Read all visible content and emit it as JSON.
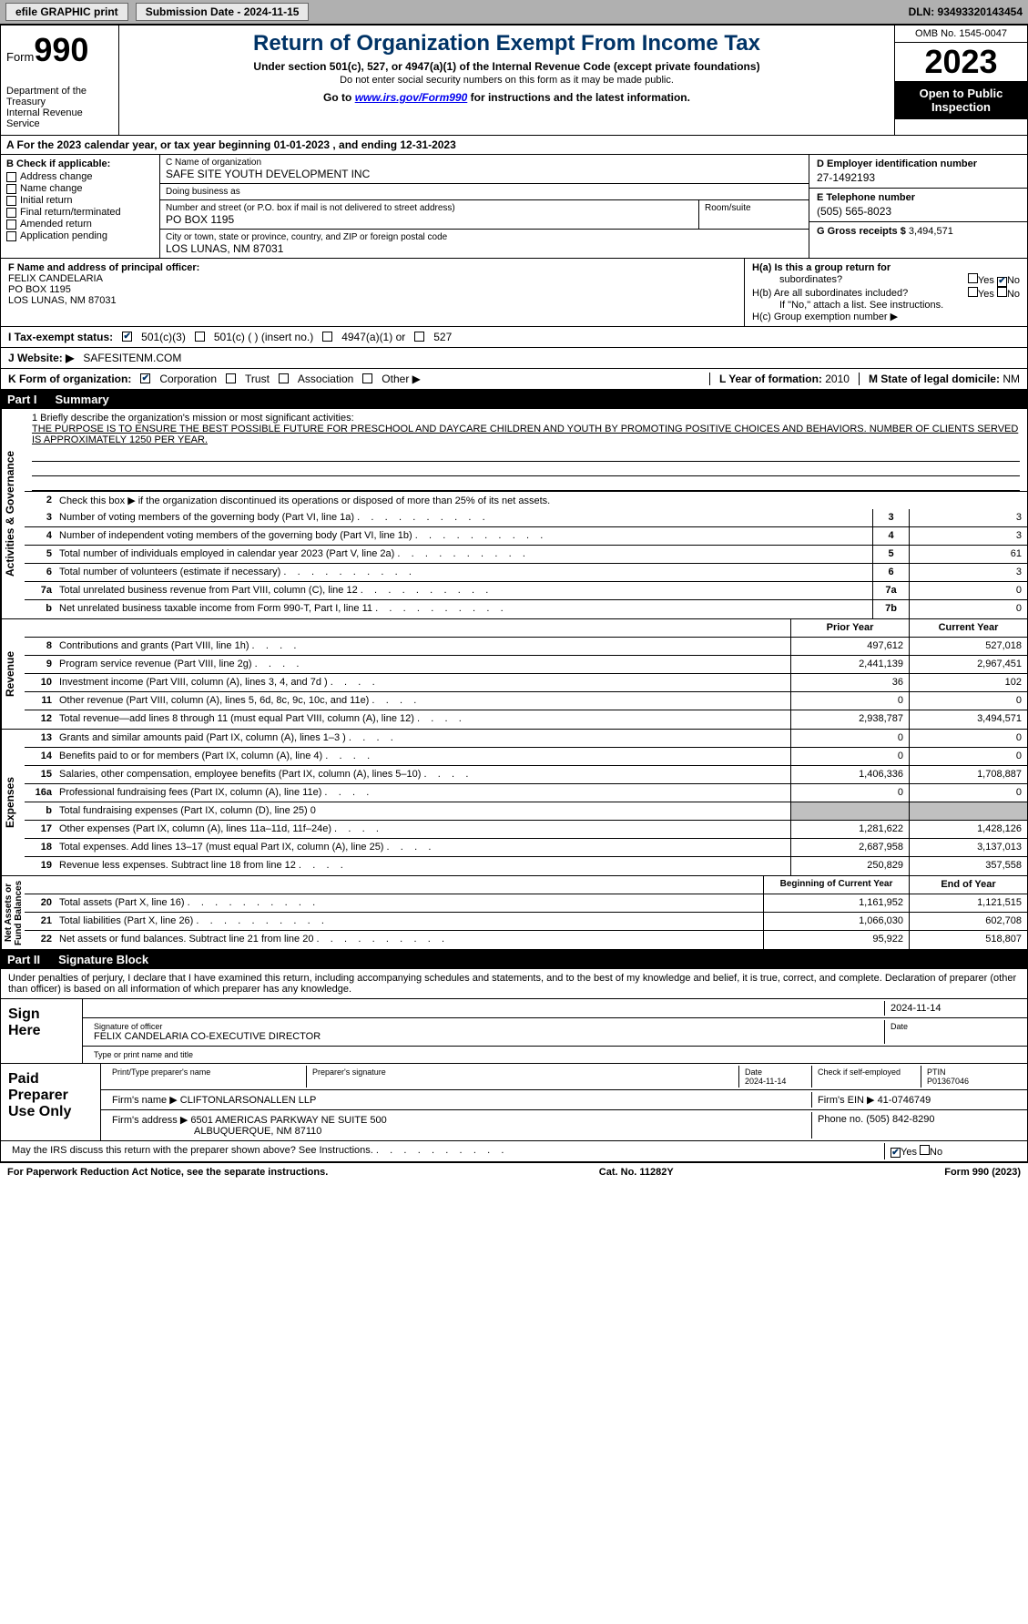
{
  "topbar": {
    "efile_btn": "efile GRAPHIC print",
    "submission": "Submission Date - 2024-11-15",
    "dln": "DLN: 93493320143454"
  },
  "header": {
    "form_label": "Form",
    "form_num": "990",
    "dept": "Department of the Treasury\nInternal Revenue Service",
    "title": "Return of Organization Exempt From Income Tax",
    "subtitle": "Under section 501(c), 527, or 4947(a)(1) of the Internal Revenue Code (except private foundations)",
    "note": "Do not enter social security numbers on this form as it may be made public.",
    "goto_prefix": "Go to ",
    "goto_link": "www.irs.gov/Form990",
    "goto_suffix": " for instructions and the latest information.",
    "omb": "OMB No. 1545-0047",
    "year": "2023",
    "open": "Open to Public Inspection"
  },
  "row_a": "A  For the 2023 calendar year, or tax year beginning 01-01-2023   , and ending 12-31-2023",
  "col_b": {
    "hdr": "B Check if applicable:",
    "items": [
      "Address change",
      "Name change",
      "Initial return",
      "Final return/terminated",
      "Amended return",
      "Application pending"
    ]
  },
  "col_c": {
    "name_lbl": "C Name of organization",
    "name": "SAFE SITE YOUTH DEVELOPMENT INC",
    "dba_lbl": "Doing business as",
    "dba": "",
    "street_lbl": "Number and street (or P.O. box if mail is not delivered to street address)",
    "street": "PO BOX 1195",
    "room_lbl": "Room/suite",
    "room": "",
    "city_lbl": "City or town, state or province, country, and ZIP or foreign postal code",
    "city": "LOS LUNAS, NM  87031"
  },
  "col_d": {
    "ein_lbl": "D Employer identification number",
    "ein": "27-1492193",
    "tel_lbl": "E Telephone number",
    "tel": "(505) 565-8023",
    "gross_lbl": "G Gross receipts $",
    "gross": "3,494,571"
  },
  "f": {
    "lbl": "F  Name and address of principal officer:",
    "name": "FELIX CANDELARIA",
    "addr1": "PO BOX 1195",
    "addr2": "LOS LUNAS, NM  87031"
  },
  "h": {
    "a_lbl": "H(a)  Is this a group return for",
    "a_sub": "subordinates?",
    "b_lbl": "H(b)  Are all subordinates included?",
    "b_note": "If \"No,\" attach a list. See instructions.",
    "c_lbl": "H(c)  Group exemption number  ▶",
    "yes": "Yes",
    "no": "No"
  },
  "i": {
    "lbl": "I   Tax-exempt status:",
    "o1": "501(c)(3)",
    "o2": "501(c) (   ) (insert no.)",
    "o3": "4947(a)(1) or",
    "o4": "527"
  },
  "j": {
    "lbl": "J   Website:  ▶",
    "val": "SAFESITENM.COM"
  },
  "k": {
    "lbl": "K Form of organization:",
    "o1": "Corporation",
    "o2": "Trust",
    "o3": "Association",
    "o4": "Other  ▶",
    "l_lbl": "L Year of formation:",
    "l_val": "2010",
    "m_lbl": "M State of legal domicile:",
    "m_val": "NM"
  },
  "part1": {
    "num": "Part I",
    "title": "Summary"
  },
  "vtabs": {
    "ag": "Activities & Governance",
    "rev": "Revenue",
    "exp": "Expenses",
    "na": "Net Assets or\nFund Balances"
  },
  "mission": {
    "lbl": "1   Briefly describe the organization's mission or most significant activities:",
    "txt": "THE PURPOSE IS TO ENSURE THE BEST POSSIBLE FUTURE FOR PRESCHOOL AND DAYCARE CHILDREN AND YOUTH BY PROMOTING POSITIVE CHOICES AND BEHAVIORS. NUMBER OF CLIENTS SERVED IS APPROXIMATELY 1250 PER YEAR."
  },
  "line2": "Check this box  ▶       if the organization discontinued its operations or disposed of more than 25% of its net assets.",
  "ag_lines": [
    {
      "n": "3",
      "t": "Number of voting members of the governing body (Part VI, line 1a)",
      "b": "3",
      "v": "3"
    },
    {
      "n": "4",
      "t": "Number of independent voting members of the governing body (Part VI, line 1b)",
      "b": "4",
      "v": "3"
    },
    {
      "n": "5",
      "t": "Total number of individuals employed in calendar year 2023 (Part V, line 2a)",
      "b": "5",
      "v": "61"
    },
    {
      "n": "6",
      "t": "Total number of volunteers (estimate if necessary)",
      "b": "6",
      "v": "3"
    },
    {
      "n": "7a",
      "t": "Total unrelated business revenue from Part VIII, column (C), line 12",
      "b": "7a",
      "v": "0"
    },
    {
      "n": "b",
      "t": "Net unrelated business taxable income from Form 990-T, Part I, line 11",
      "b": "7b",
      "v": "0"
    }
  ],
  "col_hdrs": {
    "prior": "Prior Year",
    "current": "Current Year",
    "beg": "Beginning of Current Year",
    "end": "End of Year"
  },
  "rev_lines": [
    {
      "n": "8",
      "t": "Contributions and grants (Part VIII, line 1h)",
      "p": "497,612",
      "c": "527,018"
    },
    {
      "n": "9",
      "t": "Program service revenue (Part VIII, line 2g)",
      "p": "2,441,139",
      "c": "2,967,451"
    },
    {
      "n": "10",
      "t": "Investment income (Part VIII, column (A), lines 3, 4, and 7d )",
      "p": "36",
      "c": "102"
    },
    {
      "n": "11",
      "t": "Other revenue (Part VIII, column (A), lines 5, 6d, 8c, 9c, 10c, and 11e)",
      "p": "0",
      "c": "0"
    },
    {
      "n": "12",
      "t": "Total revenue—add lines 8 through 11 (must equal Part VIII, column (A), line 12)",
      "p": "2,938,787",
      "c": "3,494,571"
    }
  ],
  "exp_lines": [
    {
      "n": "13",
      "t": "Grants and similar amounts paid (Part IX, column (A), lines 1–3 )",
      "p": "0",
      "c": "0"
    },
    {
      "n": "14",
      "t": "Benefits paid to or for members (Part IX, column (A), line 4)",
      "p": "0",
      "c": "0"
    },
    {
      "n": "15",
      "t": "Salaries, other compensation, employee benefits (Part IX, column (A), lines 5–10)",
      "p": "1,406,336",
      "c": "1,708,887"
    },
    {
      "n": "16a",
      "t": "Professional fundraising fees (Part IX, column (A), line 11e)",
      "p": "0",
      "c": "0"
    },
    {
      "n": "b",
      "t": "Total fundraising expenses (Part IX, column (D), line 25) 0",
      "p": "",
      "c": "",
      "grey": true
    },
    {
      "n": "17",
      "t": "Other expenses (Part IX, column (A), lines 11a–11d, 11f–24e)",
      "p": "1,281,622",
      "c": "1,428,126"
    },
    {
      "n": "18",
      "t": "Total expenses. Add lines 13–17 (must equal Part IX, column (A), line 25)",
      "p": "2,687,958",
      "c": "3,137,013"
    },
    {
      "n": "19",
      "t": "Revenue less expenses. Subtract line 18 from line 12",
      "p": "250,829",
      "c": "357,558"
    }
  ],
  "na_lines": [
    {
      "n": "20",
      "t": "Total assets (Part X, line 16)",
      "p": "1,161,952",
      "c": "1,121,515"
    },
    {
      "n": "21",
      "t": "Total liabilities (Part X, line 26)",
      "p": "1,066,030",
      "c": "602,708"
    },
    {
      "n": "22",
      "t": "Net assets or fund balances. Subtract line 21 from line 20",
      "p": "95,922",
      "c": "518,807"
    }
  ],
  "part2": {
    "num": "Part II",
    "title": "Signature Block"
  },
  "sig": {
    "decl": "Under penalties of perjury, I declare that I have examined this return, including accompanying schedules and statements, and to the best of my knowledge and belief, it is true, correct, and complete. Declaration of preparer (other than officer) is based on all information of which preparer has any knowledge.",
    "sign_here": "Sign Here",
    "sig_lbl": "Signature of officer",
    "officer": "FELIX CANDELARIA  CO-EXECUTIVE DIRECTOR",
    "type_lbl": "Type or print name and title",
    "date_lbl": "Date",
    "date": "2024-11-14",
    "paid": "Paid Preparer Use Only",
    "prep_name_lbl": "Print/Type preparer's name",
    "prep_sig_lbl": "Preparer's signature",
    "prep_date_lbl": "Date",
    "prep_date": "2024-11-14",
    "check_lbl": "Check         if self-employed",
    "ptin_lbl": "PTIN",
    "ptin": "P01367046",
    "firm_name_lbl": "Firm's name    ▶",
    "firm_name": "CLIFTONLARSONALLEN LLP",
    "firm_ein_lbl": "Firm's EIN  ▶",
    "firm_ein": "41-0746749",
    "firm_addr_lbl": "Firm's address ▶",
    "firm_addr1": "6501 AMERICAS PARKWAY NE SUITE 500",
    "firm_addr2": "ALBUQUERQUE, NM  87110",
    "phone_lbl": "Phone no.",
    "phone": "(505) 842-8290",
    "discuss": "May the IRS discuss this return with the preparer shown above? See Instructions."
  },
  "footer": {
    "left": "For Paperwork Reduction Act Notice, see the separate instructions.",
    "mid": "Cat. No. 11282Y",
    "right": "Form 990 (2023)"
  }
}
